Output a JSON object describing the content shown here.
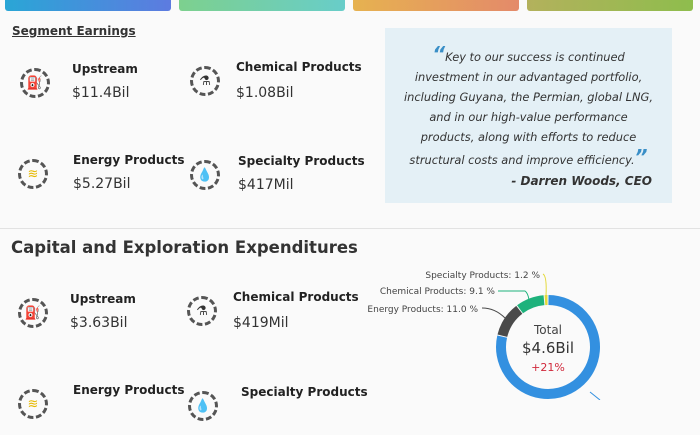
{
  "top_cards": [
    {
      "color": "#4a8ede"
    },
    {
      "color": "#72cfac"
    },
    {
      "color": "#e59d5e"
    },
    {
      "color": "#a1b756"
    }
  ],
  "segment_earnings": {
    "title": "Segment Earnings",
    "items": [
      {
        "label": "Upstream",
        "value": "$11.4Bil",
        "icon": "oil-pump-icon"
      },
      {
        "label": "Chemical Products",
        "value": "$1.08Bil",
        "icon": "flask-icon"
      },
      {
        "label": "Energy Products",
        "value": "$5.27Bil",
        "icon": "waves-icon"
      },
      {
        "label": "Specialty Products",
        "value": "$417Mil",
        "icon": "drop-icon"
      }
    ]
  },
  "quote": {
    "text": "Key to our success is continued investment in our advantaged portfolio, including Guyana, the Permian, global LNG, and in our high-value performance products, along with efforts to reduce structural costs and improve efficiency.",
    "author": "- Darren Woods, CEO"
  },
  "capex": {
    "title": "Capital and Exploration Expenditures",
    "items": [
      {
        "label": "Upstream",
        "value": "$3.63Bil",
        "icon": "oil-pump-icon"
      },
      {
        "label": "Chemical Products",
        "value": "$419Mil",
        "icon": "flask-icon"
      },
      {
        "label": "Energy Products",
        "value": "",
        "icon": "waves-icon"
      },
      {
        "label": "Specialty Products",
        "value": "",
        "icon": "drop-icon"
      }
    ]
  },
  "chart_data": {
    "type": "pie",
    "center_label": "Total",
    "center_value": "$4.6Bil",
    "center_change": "+21%",
    "slices": [
      {
        "label": "Specialty Products: 1.2 %",
        "value": 1.2,
        "color": "#e3d93a"
      },
      {
        "label": "Chemical Products: 9.1 %",
        "value": 9.1,
        "color": "#1eb27c"
      },
      {
        "label": "Energy Products: 11.0 %",
        "value": 11.0,
        "color": "#4a4a4a"
      },
      {
        "label": "",
        "value": 78.7,
        "color": "#3390e0"
      }
    ]
  }
}
